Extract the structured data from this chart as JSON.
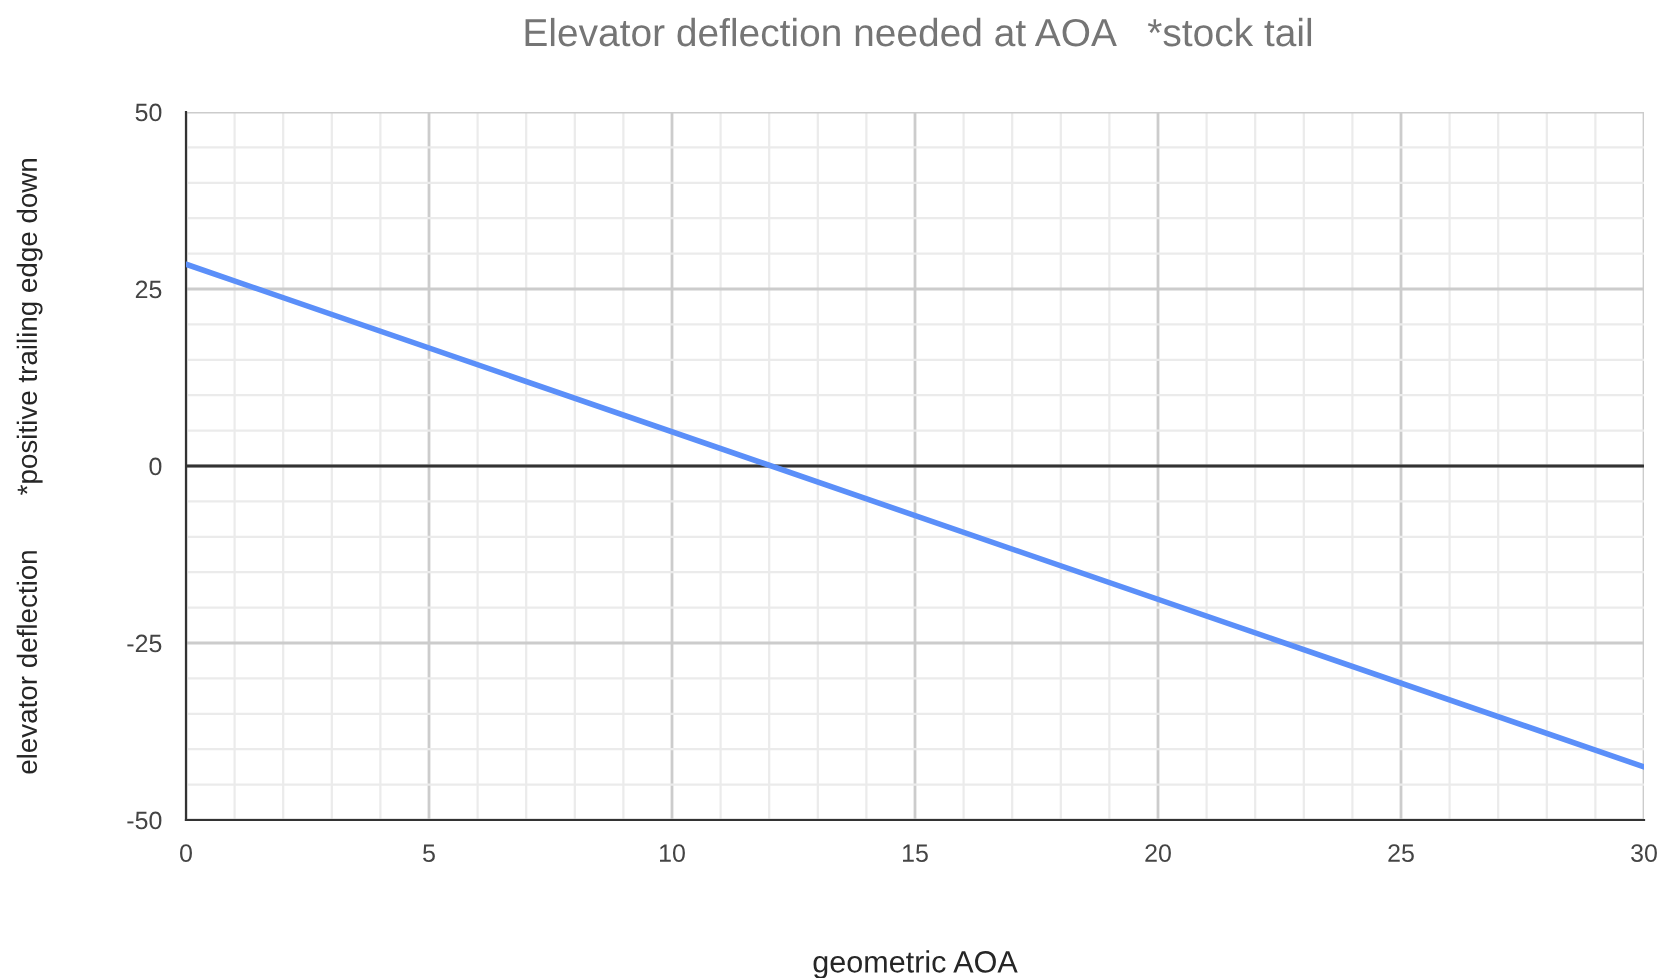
{
  "chart_data": {
    "type": "line",
    "title": "Elevator deflection needed at AOA   *stock tail",
    "xlabel": "geometric AOA",
    "ylabel": "elevator deflection       *positive trailing edge down",
    "x": [
      0,
      30
    ],
    "series": [
      {
        "color": "#5b8ff9",
        "values": [
          28.5,
          -42.5
        ]
      }
    ],
    "xlim": [
      0,
      30
    ],
    "xticks": [
      0,
      5,
      10,
      15,
      20,
      25,
      30
    ],
    "ylim": [
      -50,
      50
    ],
    "yticks": [
      -50,
      -25,
      0,
      25,
      50
    ],
    "ref_lines": [
      {
        "axis": "y",
        "value": 0,
        "color": "#333333"
      }
    ],
    "grid": true,
    "legend": false,
    "marker": "none",
    "line_style": "solid"
  }
}
